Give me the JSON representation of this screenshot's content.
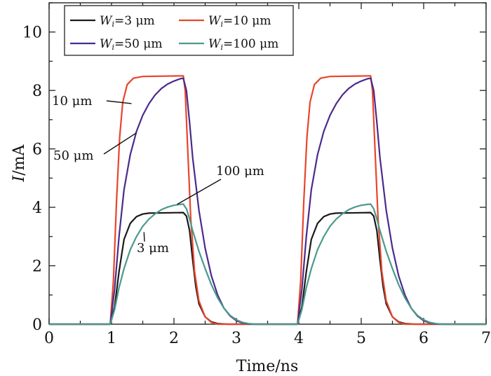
{
  "chart_data": {
    "type": "line",
    "xlabel": "Time/ns",
    "ylabel_var": "I",
    "ylabel_unit": "/mA",
    "xlim": [
      0,
      7
    ],
    "ylim": [
      0,
      11
    ],
    "xticks": [
      0,
      1,
      2,
      3,
      4,
      5,
      6,
      7
    ],
    "yticks": [
      0,
      2,
      4,
      6,
      8,
      10
    ],
    "grid": false,
    "legend_placement": "top",
    "series": [
      {
        "name_var": "W",
        "name_sub": "i",
        "name_value": "=3 μm",
        "color": "#1a1a1a",
        "points": [
          [
            0,
            0
          ],
          [
            0.98,
            0
          ],
          [
            1.05,
            0.6
          ],
          [
            1.12,
            1.8
          ],
          [
            1.2,
            2.9
          ],
          [
            1.3,
            3.45
          ],
          [
            1.4,
            3.68
          ],
          [
            1.5,
            3.77
          ],
          [
            1.6,
            3.8
          ],
          [
            2.15,
            3.82
          ],
          [
            2.2,
            3.7
          ],
          [
            2.25,
            3.2
          ],
          [
            2.3,
            2.2
          ],
          [
            2.35,
            1.3
          ],
          [
            2.4,
            0.7
          ],
          [
            2.5,
            0.25
          ],
          [
            2.6,
            0.08
          ],
          [
            2.7,
            0.02
          ],
          [
            2.85,
            0
          ],
          [
            3.98,
            0
          ],
          [
            4.05,
            0.6
          ],
          [
            4.12,
            1.8
          ],
          [
            4.2,
            2.9
          ],
          [
            4.3,
            3.45
          ],
          [
            4.4,
            3.68
          ],
          [
            4.5,
            3.77
          ],
          [
            4.6,
            3.8
          ],
          [
            5.15,
            3.82
          ],
          [
            5.2,
            3.7
          ],
          [
            5.25,
            3.2
          ],
          [
            5.3,
            2.2
          ],
          [
            5.35,
            1.3
          ],
          [
            5.4,
            0.7
          ],
          [
            5.5,
            0.25
          ],
          [
            5.6,
            0.08
          ],
          [
            5.7,
            0.02
          ],
          [
            5.85,
            0
          ],
          [
            7,
            0
          ]
        ]
      },
      {
        "name_var": "W",
        "name_sub": "i",
        "name_value": "=10 μm",
        "color": "#e8452a",
        "points": [
          [
            0,
            0
          ],
          [
            0.98,
            0
          ],
          [
            1.03,
            1.5
          ],
          [
            1.08,
            4.2
          ],
          [
            1.13,
            6.4
          ],
          [
            1.18,
            7.6
          ],
          [
            1.25,
            8.2
          ],
          [
            1.35,
            8.42
          ],
          [
            1.5,
            8.48
          ],
          [
            2.15,
            8.5
          ],
          [
            2.18,
            8.0
          ],
          [
            2.22,
            6.0
          ],
          [
            2.27,
            3.6
          ],
          [
            2.33,
            1.8
          ],
          [
            2.4,
            0.8
          ],
          [
            2.5,
            0.25
          ],
          [
            2.6,
            0.06
          ],
          [
            2.7,
            0
          ],
          [
            3.98,
            0
          ],
          [
            4.03,
            1.5
          ],
          [
            4.08,
            4.2
          ],
          [
            4.13,
            6.4
          ],
          [
            4.18,
            7.6
          ],
          [
            4.25,
            8.2
          ],
          [
            4.35,
            8.42
          ],
          [
            4.5,
            8.48
          ],
          [
            5.15,
            8.5
          ],
          [
            5.18,
            8.0
          ],
          [
            5.22,
            6.0
          ],
          [
            5.27,
            3.6
          ],
          [
            5.33,
            1.8
          ],
          [
            5.4,
            0.8
          ],
          [
            5.5,
            0.25
          ],
          [
            5.6,
            0.06
          ],
          [
            5.7,
            0
          ],
          [
            7,
            0
          ]
        ]
      },
      {
        "name_var": "W",
        "name_sub": "i",
        "name_value": "=50 μm",
        "color": "#4b2a8c",
        "points": [
          [
            0,
            0
          ],
          [
            0.98,
            0
          ],
          [
            1.05,
            1.2
          ],
          [
            1.12,
            3.0
          ],
          [
            1.2,
            4.6
          ],
          [
            1.3,
            5.8
          ],
          [
            1.4,
            6.6
          ],
          [
            1.5,
            7.15
          ],
          [
            1.6,
            7.55
          ],
          [
            1.7,
            7.85
          ],
          [
            1.8,
            8.07
          ],
          [
            1.9,
            8.22
          ],
          [
            2.0,
            8.32
          ],
          [
            2.1,
            8.4
          ],
          [
            2.15,
            8.42
          ],
          [
            2.2,
            8.0
          ],
          [
            2.25,
            6.9
          ],
          [
            2.3,
            5.7
          ],
          [
            2.4,
            3.9
          ],
          [
            2.5,
            2.6
          ],
          [
            2.6,
            1.65
          ],
          [
            2.7,
            1.0
          ],
          [
            2.8,
            0.55
          ],
          [
            2.9,
            0.28
          ],
          [
            3.0,
            0.12
          ],
          [
            3.1,
            0.04
          ],
          [
            3.2,
            0.01
          ],
          [
            3.3,
            0
          ],
          [
            3.98,
            0
          ],
          [
            4.05,
            1.2
          ],
          [
            4.12,
            3.0
          ],
          [
            4.2,
            4.6
          ],
          [
            4.3,
            5.8
          ],
          [
            4.4,
            6.6
          ],
          [
            4.5,
            7.15
          ],
          [
            4.6,
            7.55
          ],
          [
            4.7,
            7.85
          ],
          [
            4.8,
            8.07
          ],
          [
            4.9,
            8.22
          ],
          [
            5.0,
            8.32
          ],
          [
            5.1,
            8.4
          ],
          [
            5.15,
            8.42
          ],
          [
            5.2,
            8.0
          ],
          [
            5.25,
            6.9
          ],
          [
            5.3,
            5.7
          ],
          [
            5.4,
            3.9
          ],
          [
            5.5,
            2.6
          ],
          [
            5.6,
            1.65
          ],
          [
            5.7,
            1.0
          ],
          [
            5.8,
            0.55
          ],
          [
            5.9,
            0.28
          ],
          [
            6.0,
            0.12
          ],
          [
            6.1,
            0.04
          ],
          [
            6.2,
            0.01
          ],
          [
            6.3,
            0
          ],
          [
            7,
            0
          ]
        ]
      },
      {
        "name_var": "W",
        "name_sub": "i",
        "name_value": "=100 μm",
        "color": "#4a9a8c",
        "points": [
          [
            0,
            0
          ],
          [
            0.98,
            0
          ],
          [
            1.05,
            0.5
          ],
          [
            1.12,
            1.25
          ],
          [
            1.2,
            1.9
          ],
          [
            1.3,
            2.55
          ],
          [
            1.4,
            3.0
          ],
          [
            1.5,
            3.35
          ],
          [
            1.6,
            3.6
          ],
          [
            1.7,
            3.78
          ],
          [
            1.8,
            3.92
          ],
          [
            1.9,
            4.01
          ],
          [
            2.0,
            4.07
          ],
          [
            2.1,
            4.1
          ],
          [
            2.15,
            4.11
          ],
          [
            2.2,
            3.95
          ],
          [
            2.25,
            3.6
          ],
          [
            2.3,
            3.2
          ],
          [
            2.4,
            2.5
          ],
          [
            2.5,
            1.9
          ],
          [
            2.6,
            1.35
          ],
          [
            2.7,
            0.9
          ],
          [
            2.8,
            0.55
          ],
          [
            2.9,
            0.3
          ],
          [
            3.0,
            0.15
          ],
          [
            3.1,
            0.06
          ],
          [
            3.2,
            0.02
          ],
          [
            3.3,
            0
          ],
          [
            3.98,
            0
          ],
          [
            4.05,
            0.5
          ],
          [
            4.12,
            1.25
          ],
          [
            4.2,
            1.9
          ],
          [
            4.3,
            2.55
          ],
          [
            4.4,
            3.0
          ],
          [
            4.5,
            3.35
          ],
          [
            4.6,
            3.6
          ],
          [
            4.7,
            3.78
          ],
          [
            4.8,
            3.92
          ],
          [
            4.9,
            4.01
          ],
          [
            5.0,
            4.07
          ],
          [
            5.1,
            4.1
          ],
          [
            5.15,
            4.11
          ],
          [
            5.2,
            3.95
          ],
          [
            5.25,
            3.6
          ],
          [
            5.3,
            3.2
          ],
          [
            5.4,
            2.5
          ],
          [
            5.5,
            1.9
          ],
          [
            5.6,
            1.35
          ],
          [
            5.7,
            0.9
          ],
          [
            5.8,
            0.55
          ],
          [
            5.9,
            0.3
          ],
          [
            6.0,
            0.15
          ],
          [
            6.1,
            0.06
          ],
          [
            6.2,
            0.02
          ],
          [
            6.3,
            0
          ],
          [
            7,
            0
          ]
        ]
      }
    ],
    "annotations": [
      {
        "label": "10 μm",
        "anchor": [
          1.32,
          7.55
        ]
      },
      {
        "label": "50 μm",
        "anchor": [
          1.4,
          6.55
        ]
      },
      {
        "label": "100 μm",
        "anchor": [
          2.05,
          4.1
        ]
      },
      {
        "label": "3 μm",
        "anchor": [
          1.52,
          3.15
        ]
      }
    ]
  }
}
